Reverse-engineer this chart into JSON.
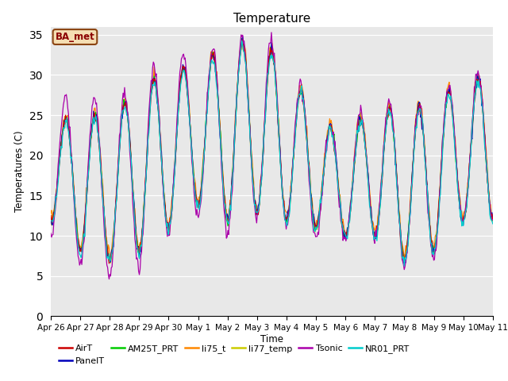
{
  "title": "Temperature",
  "ylabel": "Temperatures (C)",
  "xlabel": "Time",
  "annotation_text": "BA_met",
  "ylim": [
    0,
    36
  ],
  "yticks": [
    0,
    5,
    10,
    15,
    20,
    25,
    30,
    35
  ],
  "series_colors": {
    "AirT": "#cc0000",
    "PanelT": "#0000bb",
    "AM25T_PRT": "#00cc00",
    "li75_t": "#ff8800",
    "li77_temp": "#cccc00",
    "Tsonic": "#aa00aa",
    "NR01_PRT": "#00cccc"
  },
  "background_color": "#e8e8e8",
  "tick_labels": [
    "Apr 26",
    "Apr 27",
    "Apr 28",
    "Apr 29",
    "Apr 30",
    "May 1",
    "May 2",
    "May 3",
    "May 4",
    "May 5",
    "May 6",
    "May 7",
    "May 8",
    "May 9",
    "May 10",
    "May 11"
  ],
  "day_peaks": [
    23,
    26,
    24,
    29,
    30,
    32,
    33,
    35,
    31,
    25,
    22,
    27,
    25,
    27,
    29,
    30
  ],
  "day_troughs": [
    12,
    8,
    7,
    8,
    11,
    14,
    12,
    13,
    12,
    11,
    10,
    10,
    7,
    8,
    12,
    12
  ],
  "n_points": 600,
  "n_days": 15
}
